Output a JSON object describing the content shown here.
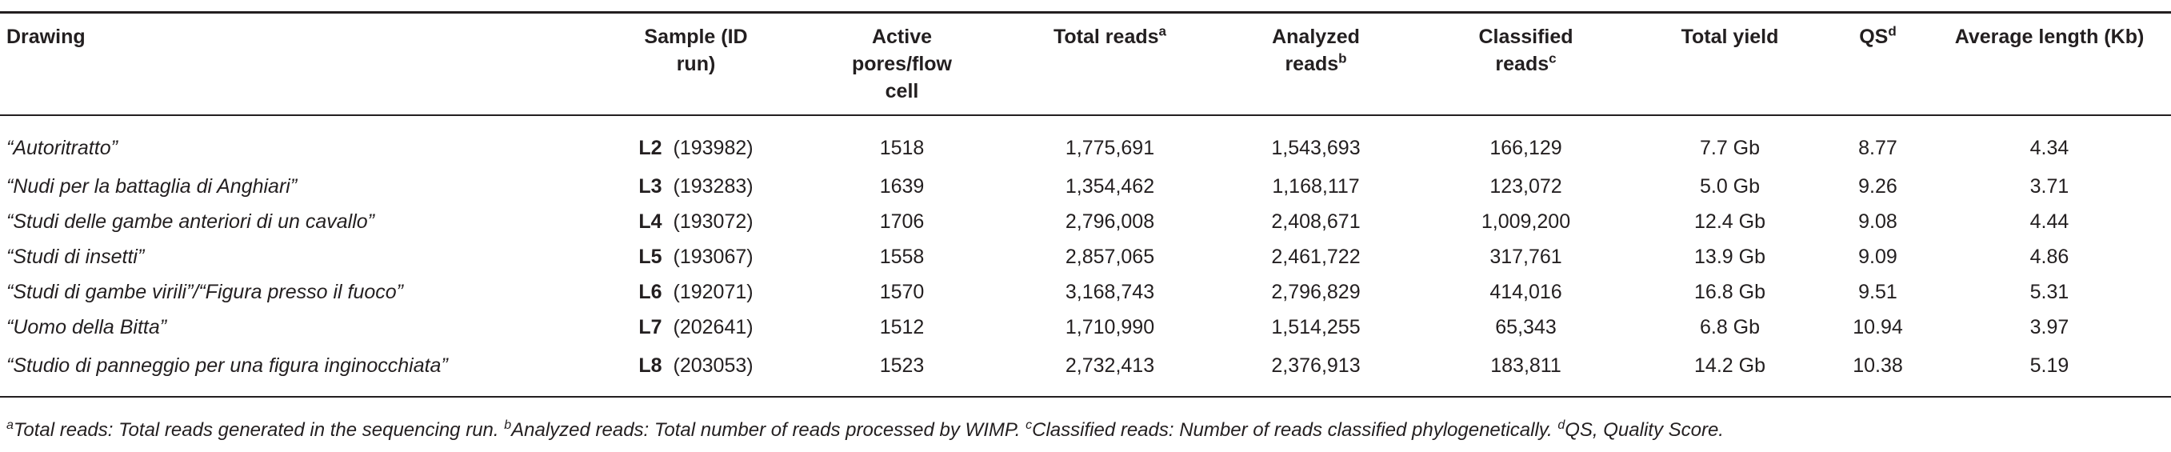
{
  "table": {
    "columns": [
      {
        "label": "Drawing",
        "sup": ""
      },
      {
        "label": "Sample (ID run)",
        "sup": ""
      },
      {
        "label": "Active pores/flow cell",
        "sup": ""
      },
      {
        "label": "Total reads",
        "sup": "a"
      },
      {
        "label": "Analyzed reads",
        "sup": "b"
      },
      {
        "label": "Classified reads",
        "sup": "c"
      },
      {
        "label": "Total yield",
        "sup": ""
      },
      {
        "label": "QS",
        "sup": "d"
      },
      {
        "label": "Average length (Kb)",
        "sup": ""
      }
    ],
    "rows": [
      {
        "drawing": "“Autoritratto”",
        "sample": "L2",
        "run": "(193982)",
        "pores": "1518",
        "total_reads": "1,775,691",
        "analyzed": "1,543,693",
        "classified": "166,129",
        "yield": "7.7 Gb",
        "qs": "8.77",
        "avg_len": "4.34"
      },
      {
        "drawing": "“Nudi per la battaglia di Anghiari”",
        "sample": "L3",
        "run": "(193283)",
        "pores": "1639",
        "total_reads": "1,354,462",
        "analyzed": "1,168,117",
        "classified": "123,072",
        "yield": "5.0 Gb",
        "qs": "9.26",
        "avg_len": "3.71"
      },
      {
        "drawing": "“Studi delle gambe anteriori di un cavallo”",
        "sample": "L4",
        "run": "(193072)",
        "pores": "1706",
        "total_reads": "2,796,008",
        "analyzed": "2,408,671",
        "classified": "1,009,200",
        "yield": "12.4 Gb",
        "qs": "9.08",
        "avg_len": "4.44"
      },
      {
        "drawing": "“Studi di insetti”",
        "sample": "L5",
        "run": "(193067)",
        "pores": "1558",
        "total_reads": "2,857,065",
        "analyzed": "2,461,722",
        "classified": "317,761",
        "yield": "13.9 Gb",
        "qs": "9.09",
        "avg_len": "4.86"
      },
      {
        "drawing": "“Studi di gambe virili”/“Figura presso il fuoco”",
        "sample": "L6",
        "run": "(192071)",
        "pores": "1570",
        "total_reads": "3,168,743",
        "analyzed": "2,796,829",
        "classified": "414,016",
        "yield": "16.8 Gb",
        "qs": "9.51",
        "avg_len": "5.31"
      },
      {
        "drawing": "“Uomo della Bitta”",
        "sample": "L7",
        "run": "(202641)",
        "pores": "1512",
        "total_reads": "1,710,990",
        "analyzed": "1,514,255",
        "classified": "65,343",
        "yield": "6.8 Gb",
        "qs": "10.94",
        "avg_len": "3.97"
      },
      {
        "drawing": "“Studio di panneggio per una figura inginocchiata”",
        "sample": "L8",
        "run": "(203053)",
        "pores": "1523",
        "total_reads": "2,732,413",
        "analyzed": "2,376,913",
        "classified": "183,811",
        "yield": "14.2 Gb",
        "qs": "10.38",
        "avg_len": "5.19"
      }
    ]
  },
  "footnotes": [
    {
      "sup": "a",
      "text": "Total reads: Total reads generated in the sequencing run. "
    },
    {
      "sup": "b",
      "text": "Analyzed reads: Total number of reads processed by WIMP. "
    },
    {
      "sup": "c",
      "text": "Classified reads: Number of reads classified phylogenetically. "
    },
    {
      "sup": "d",
      "text": "QS, Quality Score."
    }
  ]
}
